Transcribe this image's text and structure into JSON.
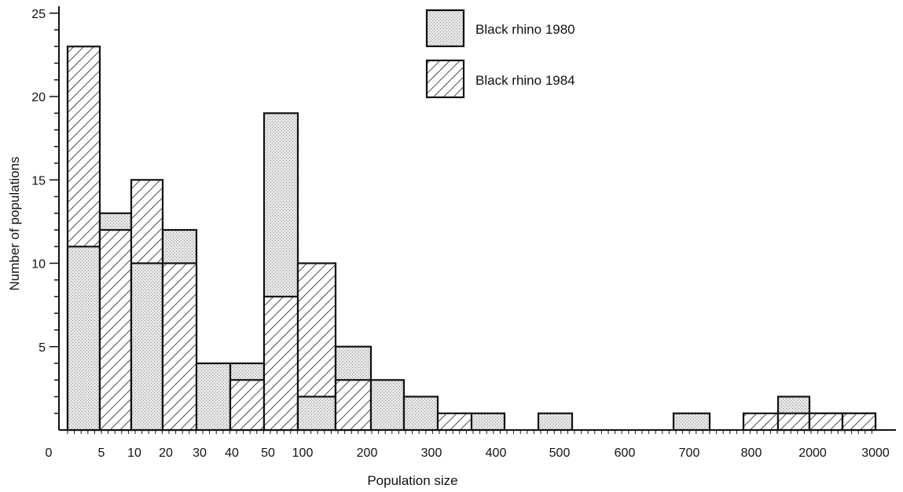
{
  "chart_data": {
    "type": "bar",
    "xlabel": "Population size",
    "ylabel": "Number of populations",
    "ylim": [
      0,
      25
    ],
    "y_ticks": [
      "5",
      "10",
      "15",
      "20",
      "25"
    ],
    "origin_label": "0",
    "x_tick_labels": [
      "5",
      "10",
      "20",
      "30",
      "40",
      "50",
      "100",
      "200",
      "300",
      "400",
      "500",
      "600",
      "700",
      "800",
      "2000",
      "3000"
    ],
    "grid": false,
    "legend_position": "top-right",
    "series": [
      {
        "name": "Black rhino 1980",
        "pattern": "stipple"
      },
      {
        "name": "Black rhino 1984",
        "pattern": "hatch"
      }
    ],
    "bins": [
      {
        "range": "0-5",
        "y1980": 11,
        "y1984": 23
      },
      {
        "range": "5-10",
        "y1980": 13,
        "y1984": 12
      },
      {
        "range": "10-20",
        "y1980": 10,
        "y1984": 15
      },
      {
        "range": "20-30",
        "y1980": 12,
        "y1984": 10
      },
      {
        "range": "30-40",
        "y1980": 4,
        "y1984": 0
      },
      {
        "range": "40-50",
        "y1980": 4,
        "y1984": 3
      },
      {
        "range": "50-100",
        "y1980": 19,
        "y1984": 8
      },
      {
        "range": "100-150",
        "y1980": 2,
        "y1984": 10
      },
      {
        "range": "150-200",
        "y1980": 5,
        "y1984": 3
      },
      {
        "range": "200-250",
        "y1980": 3,
        "y1984": 0
      },
      {
        "range": "250-300",
        "y1980": 2,
        "y1984": 0
      },
      {
        "range": "300-350",
        "y1980": 0,
        "y1984": 1
      },
      {
        "range": "350-400",
        "y1980": 1,
        "y1984": 0
      },
      {
        "range": "450-500",
        "y1980": 1,
        "y1984": 0
      },
      {
        "range": "650-700",
        "y1980": 1,
        "y1984": 0
      },
      {
        "range": "750-800",
        "y1980": 0,
        "y1984": 1
      },
      {
        "range": "800-2000",
        "y1980": 2,
        "y1984": 1
      },
      {
        "range": "2000-2500",
        "y1980": 1,
        "y1984": 1
      },
      {
        "range": "2500-3000",
        "y1980": 1,
        "y1984": 1
      }
    ]
  }
}
